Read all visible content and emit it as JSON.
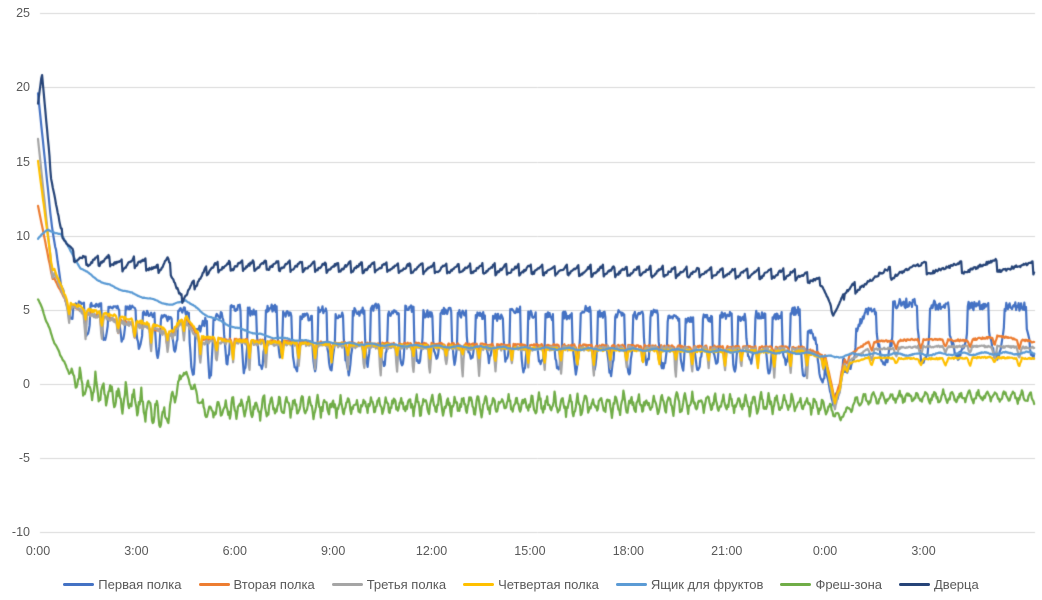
{
  "chart_data": {
    "type": "line",
    "title": "",
    "xlabel": "",
    "ylabel": "",
    "background_color": "#FFFFFF",
    "grid": "horizontal",
    "grid_color": "#D9D9D9",
    "axis_label_color": "#595959",
    "legend_position": "bottom",
    "x_unit": "hours",
    "x_range_hours": [
      0,
      30.4
    ],
    "ylim": [
      -10,
      25
    ],
    "y_ticks": [
      {
        "value": 25,
        "label": "25"
      },
      {
        "value": 20,
        "label": "20"
      },
      {
        "value": 15,
        "label": "15"
      },
      {
        "value": 10,
        "label": "10"
      },
      {
        "value": 5,
        "label": "5"
      },
      {
        "value": 0,
        "label": "0"
      },
      {
        "value": -5,
        "label": "-5"
      },
      {
        "value": -10,
        "label": "-10"
      }
    ],
    "x_ticks": [
      {
        "hour": 0,
        "label": "0:00"
      },
      {
        "hour": 3,
        "label": "3:00"
      },
      {
        "hour": 6,
        "label": "6:00"
      },
      {
        "hour": 9,
        "label": "9:00"
      },
      {
        "hour": 12,
        "label": "12:00"
      },
      {
        "hour": 15,
        "label": "15:00"
      },
      {
        "hour": 18,
        "label": "18:00"
      },
      {
        "hour": 21,
        "label": "21:00"
      },
      {
        "hour": 24,
        "label": "0:00"
      },
      {
        "hour": 27,
        "label": "3:00"
      }
    ],
    "series": [
      {
        "name": "Первая полка",
        "color": "#4472C4",
        "wave": "pulse",
        "period_min": [
          32,
          68
        ],
        "seed": 1,
        "keys": [
          [
            0,
            19.5
          ],
          [
            0.35,
            12
          ],
          [
            0.7,
            6.5
          ],
          [
            1.1,
            4.3
          ],
          [
            2,
            4.2
          ],
          [
            3,
            3.9
          ],
          [
            4.1,
            3.2
          ],
          [
            4.45,
            3.8
          ],
          [
            4.9,
            1.8
          ],
          [
            5.4,
            3.3
          ],
          [
            8,
            3.3
          ],
          [
            12,
            3.2
          ],
          [
            16,
            3.1
          ],
          [
            20,
            3.0
          ],
          [
            23.3,
            3.0
          ],
          [
            23.9,
            1.5
          ],
          [
            24.25,
            -2.0
          ],
          [
            24.55,
            1.2
          ],
          [
            25.2,
            3.2
          ],
          [
            27,
            3.5
          ],
          [
            29,
            3.6
          ],
          [
            30.4,
            3.8
          ]
        ],
        "amp": [
          [
            0,
            0.15
          ],
          [
            0.9,
            0.25
          ],
          [
            1.2,
            1.2
          ],
          [
            4,
            1.2
          ],
          [
            5,
            1.9
          ],
          [
            10,
            1.9
          ],
          [
            23.5,
            1.9
          ],
          [
            24.05,
            0.6
          ],
          [
            24.45,
            0.4
          ],
          [
            25.2,
            2.0
          ],
          [
            26,
            2.2
          ],
          [
            30.4,
            2.2
          ]
        ]
      },
      {
        "name": "Вторая полка",
        "color": "#ED7D31",
        "wave": "spike",
        "period_min": [
          30,
          45
        ],
        "seed": 2,
        "keys": [
          [
            0,
            12
          ],
          [
            0.4,
            7.5
          ],
          [
            0.9,
            5.2
          ],
          [
            1.5,
            4.6
          ],
          [
            2.5,
            4.1
          ],
          [
            3.5,
            3.6
          ],
          [
            4.1,
            3.1
          ],
          [
            4.45,
            4.4
          ],
          [
            4.95,
            2.9
          ],
          [
            6,
            2.8
          ],
          [
            9,
            2.6
          ],
          [
            13,
            2.5
          ],
          [
            18,
            2.4
          ],
          [
            23.3,
            2.3
          ],
          [
            24.0,
            1.8
          ],
          [
            24.3,
            -1.2
          ],
          [
            24.6,
            1.6
          ],
          [
            25.3,
            2.7
          ],
          [
            27,
            2.9
          ],
          [
            28.3,
            2.8
          ],
          [
            29.3,
            3.1
          ],
          [
            30.4,
            2.7
          ]
        ],
        "amp": [
          [
            0,
            0.1
          ],
          [
            1.2,
            0.5
          ],
          [
            23.5,
            0.45
          ],
          [
            24.3,
            0.25
          ],
          [
            25,
            0.35
          ],
          [
            30.4,
            0.4
          ]
        ]
      },
      {
        "name": "Третья полка",
        "color": "#A5A5A5",
        "wave": "spike",
        "period_min": [
          30,
          45
        ],
        "seed": 3,
        "keys": [
          [
            0,
            16.5
          ],
          [
            0.4,
            8.0
          ],
          [
            0.9,
            5.0
          ],
          [
            1.5,
            4.4
          ],
          [
            2.5,
            3.9
          ],
          [
            3.5,
            3.4
          ],
          [
            4.1,
            2.9
          ],
          [
            4.45,
            4.0
          ],
          [
            4.95,
            2.5
          ],
          [
            6,
            2.5
          ],
          [
            9,
            2.3
          ],
          [
            13,
            2.1
          ],
          [
            18,
            2.1
          ],
          [
            23.3,
            2.0
          ],
          [
            24.0,
            1.5
          ],
          [
            24.3,
            -1.8
          ],
          [
            24.6,
            1.3
          ],
          [
            25.3,
            2.2
          ],
          [
            27,
            2.4
          ],
          [
            29,
            2.4
          ],
          [
            30.4,
            2.3
          ]
        ],
        "amp": [
          [
            0,
            0.1
          ],
          [
            1.2,
            0.9
          ],
          [
            23.5,
            0.85
          ],
          [
            24.3,
            0.3
          ],
          [
            25,
            0.35
          ],
          [
            30.4,
            0.4
          ]
        ]
      },
      {
        "name": "Четвертая полка",
        "color": "#FFC000",
        "wave": "spike",
        "period_min": [
          30,
          45
        ],
        "seed": 4,
        "keys": [
          [
            0,
            15
          ],
          [
            0.4,
            8.2
          ],
          [
            0.9,
            5.4
          ],
          [
            1.5,
            4.8
          ],
          [
            2.5,
            4.3
          ],
          [
            3.5,
            3.8
          ],
          [
            4.1,
            3.3
          ],
          [
            4.45,
            4.5
          ],
          [
            4.95,
            3.0
          ],
          [
            6,
            2.7
          ],
          [
            9,
            2.5
          ],
          [
            13,
            2.3
          ],
          [
            18,
            2.1
          ],
          [
            23.3,
            2.0
          ],
          [
            24.0,
            1.6
          ],
          [
            24.3,
            -1.4
          ],
          [
            24.6,
            1.2
          ],
          [
            25.3,
            1.7
          ],
          [
            27,
            1.6
          ],
          [
            29,
            1.7
          ],
          [
            30.4,
            1.6
          ]
        ],
        "amp": [
          [
            0,
            0.1
          ],
          [
            1.2,
            0.6
          ],
          [
            23.5,
            0.5
          ],
          [
            24.3,
            0.25
          ],
          [
            25,
            0.25
          ],
          [
            30.4,
            0.3
          ]
        ]
      },
      {
        "name": "Ящик для фруктов",
        "color": "#5B9BD5",
        "wave": "sine",
        "period_min": [
          40,
          40
        ],
        "seed": 5,
        "keys": [
          [
            0,
            9.8
          ],
          [
            0.3,
            10.4
          ],
          [
            0.7,
            10.1
          ],
          [
            1.3,
            7.8
          ],
          [
            2,
            6.8
          ],
          [
            3,
            6.0
          ],
          [
            4.1,
            5.3
          ],
          [
            4.5,
            5.7
          ],
          [
            5,
            4.8
          ],
          [
            6,
            3.8
          ],
          [
            7,
            3.2
          ],
          [
            8.5,
            2.8
          ],
          [
            11,
            2.6
          ],
          [
            15,
            2.4
          ],
          [
            19,
            2.3
          ],
          [
            23.3,
            2.1
          ],
          [
            24.3,
            1.8
          ],
          [
            24.8,
            2.0
          ],
          [
            27,
            2.0
          ],
          [
            30.4,
            2.1
          ]
        ],
        "amp": [
          [
            0,
            0.06
          ],
          [
            30.4,
            0.1
          ]
        ]
      },
      {
        "name": "Фреш-зона",
        "color": "#70AD47",
        "wave": "tri",
        "period_min": [
          14,
          16
        ],
        "seed": 6,
        "keys": [
          [
            0,
            5.8
          ],
          [
            0.5,
            2.8
          ],
          [
            0.9,
            1.0
          ],
          [
            1.3,
            0.0
          ],
          [
            2,
            -0.6
          ],
          [
            3,
            -1.2
          ],
          [
            3.9,
            -2.3
          ],
          [
            4.45,
            0.9
          ],
          [
            5.1,
            -1.8
          ],
          [
            6,
            -1.6
          ],
          [
            8,
            -1.5
          ],
          [
            12,
            -1.4
          ],
          [
            16,
            -1.4
          ],
          [
            20,
            -1.3
          ],
          [
            23.3,
            -1.3
          ],
          [
            24.1,
            -1.6
          ],
          [
            24.45,
            -2.3
          ],
          [
            25,
            -1.1
          ],
          [
            26,
            -0.9
          ],
          [
            28,
            -0.9
          ],
          [
            29.5,
            -0.8
          ],
          [
            30.4,
            -1.0
          ]
        ],
        "amp": [
          [
            0,
            0.08
          ],
          [
            0.9,
            0.1
          ],
          [
            1.2,
            0.9
          ],
          [
            3.8,
            1.0
          ],
          [
            4.5,
            0.3
          ],
          [
            5.5,
            0.8
          ],
          [
            23.5,
            0.7
          ],
          [
            24.5,
            0.3
          ],
          [
            25.2,
            0.45
          ],
          [
            30.4,
            0.45
          ]
        ]
      },
      {
        "name": "Дверца",
        "color": "#264478",
        "wave": "saw",
        "period_min": [
          22,
          65
        ],
        "seed": 7,
        "keys": [
          [
            0,
            19
          ],
          [
            0.12,
            21
          ],
          [
            0.4,
            14
          ],
          [
            0.7,
            10.3
          ],
          [
            1.1,
            8.6
          ],
          [
            1.6,
            8.2
          ],
          [
            2.1,
            8.4
          ],
          [
            2.6,
            8.0
          ],
          [
            3.1,
            8.3
          ],
          [
            3.6,
            7.7
          ],
          [
            3.95,
            8.3
          ],
          [
            4.35,
            5.7
          ],
          [
            4.7,
            6.6
          ],
          [
            5.3,
            7.9
          ],
          [
            6.5,
            8.0
          ],
          [
            9,
            7.9
          ],
          [
            12,
            7.8
          ],
          [
            15,
            7.7
          ],
          [
            18,
            7.6
          ],
          [
            21,
            7.5
          ],
          [
            23.2,
            7.4
          ],
          [
            23.9,
            6.8
          ],
          [
            24.25,
            4.7
          ],
          [
            24.6,
            6.0
          ],
          [
            25.1,
            6.8
          ],
          [
            25.7,
            7.3
          ],
          [
            26.5,
            7.8
          ],
          [
            28,
            7.8
          ],
          [
            29,
            8.0
          ],
          [
            30.4,
            7.8
          ]
        ],
        "amp": [
          [
            0,
            0.1
          ],
          [
            1.2,
            0.45
          ],
          [
            23.5,
            0.45
          ],
          [
            24.3,
            0.15
          ],
          [
            25,
            0.5
          ],
          [
            30.4,
            0.5
          ]
        ]
      }
    ]
  }
}
